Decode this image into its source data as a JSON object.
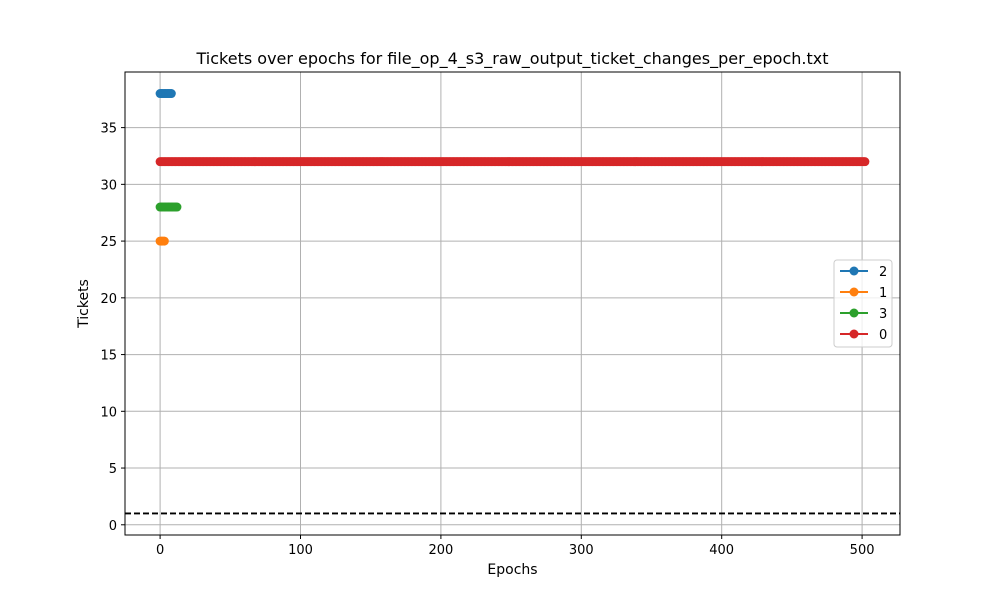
{
  "chart_data": {
    "type": "line",
    "title": "Tickets over epochs for file_op_4_s3_raw_output_ticket_changes_per_epoch.txt",
    "xlabel": "Epochs",
    "ylabel": "Tickets",
    "xlim": [
      -25,
      527
    ],
    "ylim": [
      -0.9,
      39.9
    ],
    "xticks": [
      0,
      100,
      200,
      300,
      400,
      500
    ],
    "yticks": [
      0,
      5,
      10,
      15,
      20,
      25,
      30,
      35
    ],
    "grid": true,
    "legend_position": "center-right",
    "reference_line": {
      "y": 1,
      "style": "dashed",
      "color": "#000000"
    },
    "series": [
      {
        "name": "2",
        "color": "#1f77b4",
        "x_start": 0,
        "x_end": 8,
        "y": 38
      },
      {
        "name": "1",
        "color": "#ff7f0e",
        "x_start": 0,
        "x_end": 3,
        "y": 25
      },
      {
        "name": "3",
        "color": "#2ca02c",
        "x_start": 0,
        "x_end": 12,
        "y": 28
      },
      {
        "name": "0",
        "color": "#d62728",
        "x_start": 0,
        "x_end": 502,
        "y": 32
      }
    ]
  }
}
